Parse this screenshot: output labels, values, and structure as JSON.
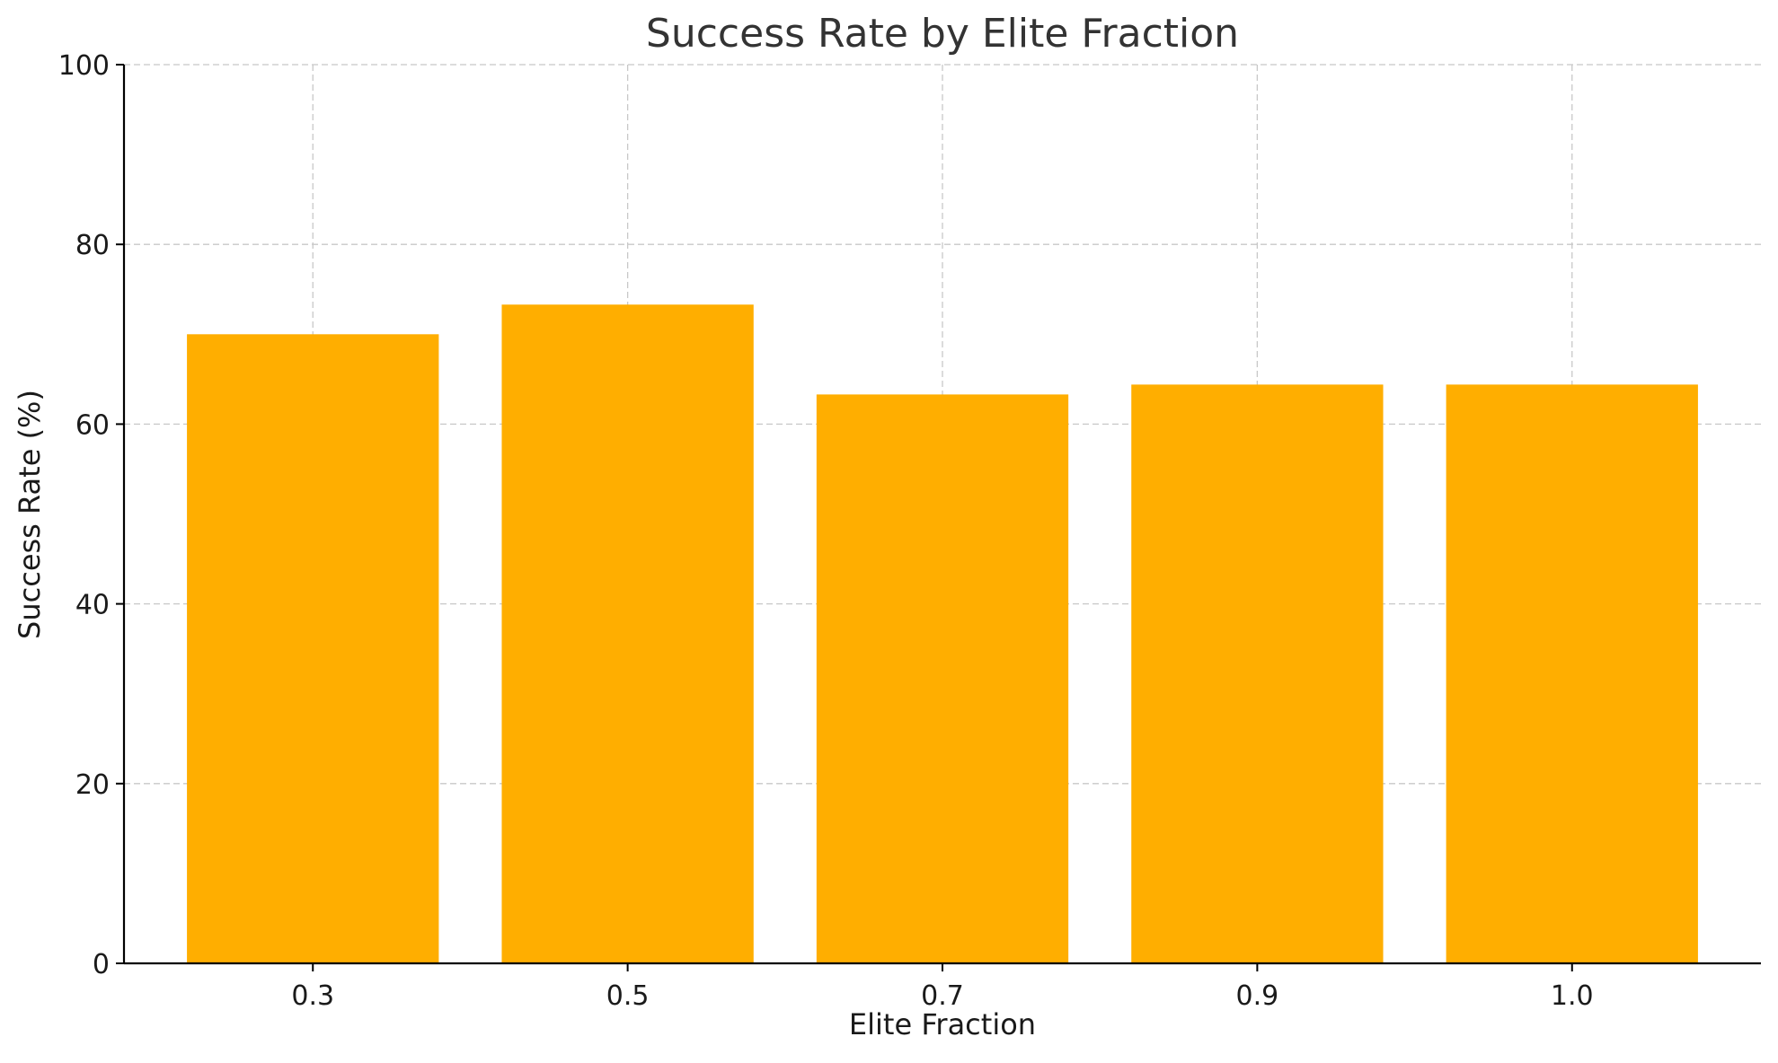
{
  "chart_data": {
    "type": "bar",
    "title": "Success Rate by Elite Fraction",
    "xlabel": "Elite Fraction",
    "ylabel": "Success Rate (%)",
    "categories": [
      "0.3",
      "0.5",
      "0.7",
      "0.9",
      "1.0"
    ],
    "values": [
      70.0,
      73.3,
      63.3,
      64.4,
      64.4
    ],
    "ylim": [
      0,
      100
    ],
    "yticks": [
      0,
      20,
      40,
      60,
      80,
      100
    ],
    "grid": true,
    "bar_color": "#FFAE00",
    "legend": null
  }
}
